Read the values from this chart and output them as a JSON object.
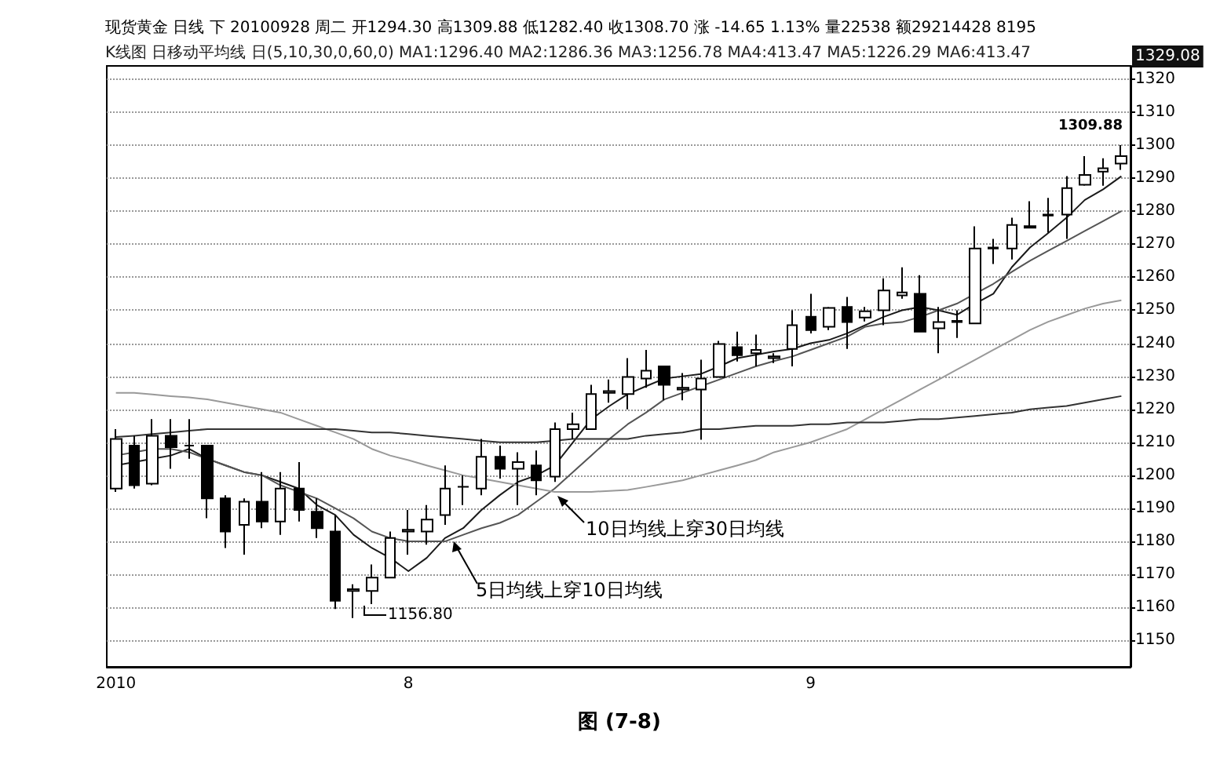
{
  "chart_data": {
    "type": "candlestick",
    "title": "现货黄金 日线 下 20100928 周二 开1294.30 高1309.88 低1282.40 收1308.70 涨 -14.65 1.13% 量22538 额29214428 8195",
    "subtitle": "K线图 日移动平均线 日(5,10,30,0,60,0) MA1:1296.40 MA2:1286.36 MA3:1256.78 MA4:413.47 MA5:1226.29 MA6:413.47",
    "categories": [
      "2010",
      null,
      null,
      null,
      null,
      null,
      null,
      null,
      null,
      null,
      null,
      null,
      null,
      null,
      null,
      null,
      "8",
      null,
      null,
      null,
      null,
      null,
      null,
      null,
      null,
      null,
      null,
      null,
      null,
      null,
      null,
      null,
      null,
      null,
      null,
      null,
      null,
      null,
      "9",
      null,
      null,
      null,
      null,
      null,
      null,
      null,
      null,
      null,
      null,
      null,
      null,
      null,
      null,
      null,
      null,
      null
    ],
    "ohlc": [
      [
        1196,
        1214,
        1195,
        1211
      ],
      [
        1209,
        1212,
        1196,
        1197
      ],
      [
        1197.5,
        1217,
        1197,
        1212
      ],
      [
        1212,
        1217,
        1202,
        1208.5
      ],
      [
        1209,
        1217,
        1205,
        1209
      ],
      [
        1209,
        1209,
        1187,
        1193
      ],
      [
        1193,
        1194,
        1178,
        1183
      ],
      [
        1185,
        1193,
        1176,
        1192
      ],
      [
        1192,
        1201,
        1184,
        1186
      ],
      [
        1186,
        1201,
        1182,
        1196
      ],
      [
        1196,
        1204,
        1186,
        1189.5
      ],
      [
        1189,
        1193,
        1181,
        1184
      ],
      [
        1183,
        1188,
        1159.5,
        1162
      ],
      [
        1165,
        1167,
        1156.8,
        1165.5
      ],
      [
        1165,
        1173,
        1161,
        1169
      ],
      [
        1169,
        1183,
        1169,
        1181
      ],
      [
        1183,
        1189.5,
        1176,
        1183.5
      ],
      [
        1183,
        1191,
        1179,
        1186.6
      ],
      [
        1188,
        1203,
        1185,
        1196
      ],
      [
        1196.5,
        1200,
        1191,
        1196.5
      ],
      [
        1196,
        1211,
        1194,
        1205.6
      ],
      [
        1205.6,
        1209,
        1199,
        1202
      ],
      [
        1202,
        1207,
        1191,
        1204
      ],
      [
        1203,
        1207.5,
        1194,
        1198.5
      ],
      [
        1199.6,
        1216,
        1198,
        1214
      ],
      [
        1214,
        1219,
        1211,
        1215.5
      ],
      [
        1214,
        1227.4,
        1214,
        1224.6
      ],
      [
        1225,
        1229,
        1222,
        1225.5
      ],
      [
        1224.6,
        1235.5,
        1220,
        1229.8
      ],
      [
        1229.3,
        1238,
        1226.5,
        1231.7
      ],
      [
        1233,
        1233,
        1222.7,
        1227.4
      ],
      [
        1226,
        1231,
        1222.7,
        1226.5
      ],
      [
        1226,
        1235,
        1210.8,
        1229.3
      ],
      [
        1229.8,
        1240.7,
        1229.8,
        1239.8
      ],
      [
        1238.8,
        1243.5,
        1234.5,
        1236.4
      ],
      [
        1237,
        1242.6,
        1233,
        1238
      ],
      [
        1235.5,
        1237,
        1234,
        1236
      ],
      [
        1238.3,
        1250,
        1233,
        1245.5
      ],
      [
        1248,
        1255,
        1243,
        1244
      ],
      [
        1245,
        1251,
        1244,
        1250.7
      ],
      [
        1251,
        1254,
        1238.3,
        1246.4
      ],
      [
        1247.8,
        1251,
        1246.6,
        1249.7
      ],
      [
        1250,
        1259.7,
        1245.5,
        1256
      ],
      [
        1254.5,
        1263,
        1253.5,
        1255.4
      ],
      [
        1255,
        1260.6,
        1243.5,
        1243.5
      ],
      [
        1244.5,
        1251,
        1237,
        1246.4
      ],
      [
        1246.4,
        1250,
        1241.6,
        1246.8
      ],
      [
        1246,
        1275.4,
        1246,
        1268.7
      ],
      [
        1268.7,
        1271.6,
        1264,
        1269
      ],
      [
        1268.7,
        1278,
        1265.4,
        1275.8
      ],
      [
        1275.5,
        1283,
        1275,
        1275
      ],
      [
        1278.7,
        1284,
        1273.5,
        1279
      ],
      [
        1279,
        1290.6,
        1271.6,
        1287
      ],
      [
        1288,
        1296.7,
        1287.7,
        1291
      ],
      [
        1292,
        1296,
        1287.7,
        1293
      ],
      [
        1294.4,
        1300,
        1292.5,
        1296.7
      ]
    ],
    "series": [
      {
        "type": "line",
        "color": "#1a1a1a",
        "values": [
          1203,
          1204,
          1205,
          1206,
          1208,
          1205,
          1203,
          1201,
          1200,
          1198,
          1196,
          1191,
          1188,
          1182,
          1178,
          1175,
          1171,
          1175,
          1181,
          1184,
          1189.5,
          1194,
          1198,
          1200,
          1203,
          1210,
          1217,
          1221,
          1224.6,
          1227,
          1229.3,
          1230,
          1230.7,
          1233,
          1235.5,
          1236.5,
          1237.5,
          1238.3,
          1240,
          1241,
          1243,
          1245.5,
          1248,
          1250,
          1251,
          1250,
          1248.6,
          1252,
          1255,
          1263,
          1269,
          1273.4,
          1278,
          1283.4,
          1286.6,
          1290.6
        ]
      },
      {
        "type": "line",
        "color": "#555555",
        "values": [
          1206,
          1207,
          1208,
          1208,
          1207,
          1205,
          1203,
          1201,
          1200,
          1197,
          1195,
          1193,
          1190,
          1187,
          1183,
          1181,
          1180,
          1180,
          1180,
          1182,
          1184,
          1185.6,
          1188,
          1192,
          1196,
          1201,
          1206,
          1211,
          1215.5,
          1219,
          1223,
          1225,
          1227,
          1229,
          1231,
          1233,
          1234.6,
          1236,
          1238,
          1240,
          1242,
          1245,
          1246,
          1246.4,
          1248,
          1250,
          1252,
          1255,
          1258,
          1261.6,
          1265,
          1268,
          1271,
          1274,
          1277,
          1280
        ]
      },
      {
        "type": "line",
        "color": "#999999",
        "values": [
          1225,
          1225,
          1224.5,
          1224,
          1223.6,
          1223,
          1222,
          1221,
          1220,
          1219,
          1217,
          1215,
          1213,
          1211,
          1208,
          1206,
          1204.6,
          1203,
          1201.5,
          1200,
          1199,
          1198,
          1197,
          1196,
          1195,
          1195,
          1195,
          1195.3,
          1195.6,
          1196.5,
          1197.5,
          1198.5,
          1200,
          1201.5,
          1203,
          1204.6,
          1207,
          1208.5,
          1210,
          1212,
          1214,
          1217,
          1220,
          1223,
          1226,
          1229,
          1232,
          1235,
          1238,
          1241,
          1244,
          1246.5,
          1248.5,
          1250.5,
          1252,
          1253
        ]
      },
      {
        "type": "line",
        "color": "#333333",
        "values": [
          1211.6,
          1212,
          1212.5,
          1213,
          1213.5,
          1214,
          1214,
          1214,
          1214,
          1214,
          1214,
          1214,
          1214,
          1213.5,
          1213,
          1213,
          1212.5,
          1212,
          1211.5,
          1211,
          1210.5,
          1210,
          1210,
          1210,
          1210.5,
          1211,
          1211,
          1211,
          1211,
          1212,
          1212.5,
          1213,
          1214,
          1214,
          1214.5,
          1215,
          1215,
          1215,
          1215.5,
          1215.5,
          1216,
          1216,
          1216,
          1216.5,
          1217,
          1217,
          1217.5,
          1218,
          1218.5,
          1219,
          1220,
          1220.5,
          1221,
          1222,
          1223,
          1224
        ]
      }
    ],
    "ylim": [
      1142,
      1324
    ],
    "yticks": [
      1150,
      1160,
      1170,
      1180,
      1190,
      1200,
      1210,
      1220,
      1230,
      1240,
      1250,
      1260,
      1270,
      1280,
      1290,
      1300,
      1310,
      1320
    ],
    "grid": "y",
    "marker": "none",
    "line_style": "solid",
    "annotations": [
      "1309.88",
      "1156.80",
      "10日均线上穿30日均线",
      "5日均线上穿10日均线",
      "1329.08",
      "图 (7-8)"
    ]
  }
}
